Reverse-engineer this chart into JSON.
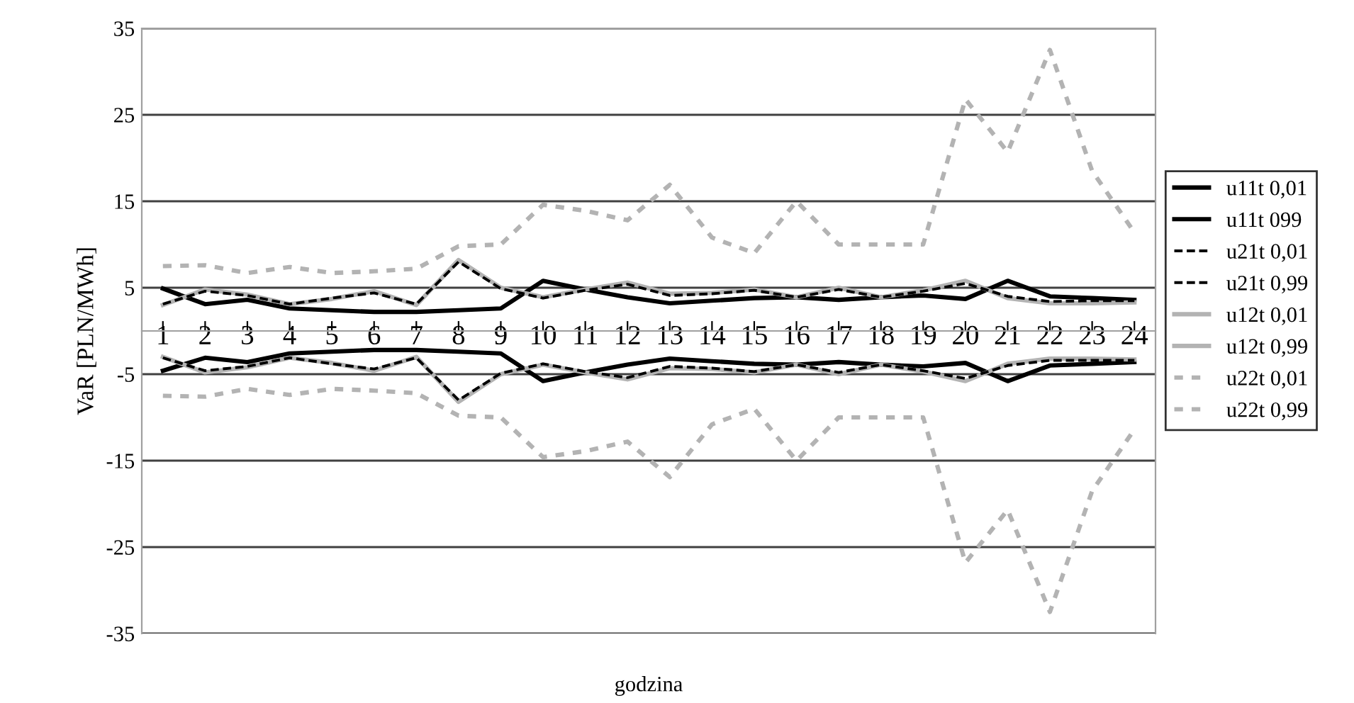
{
  "chart_data": {
    "type": "line",
    "xlabel": "godzina",
    "ylabel": "VaR [PLN/MWh]",
    "categories": [
      "1",
      "2",
      "3",
      "4",
      "5",
      "6",
      "7",
      "8",
      "9",
      "10",
      "11",
      "12",
      "13",
      "14",
      "15",
      "16",
      "17",
      "18",
      "19",
      "20",
      "21",
      "22",
      "23",
      "24"
    ],
    "ylim": [
      -35,
      35
    ],
    "yticks": [
      -35,
      -25,
      -15,
      -5,
      5,
      15,
      25,
      35
    ],
    "grid": "y",
    "legend": "right",
    "marker": "none",
    "series": [
      {
        "name": "u11t 0,01",
        "color": "#000000",
        "line_style": "solid",
        "values": [
          -4.6,
          -3.1,
          -3.6,
          -2.6,
          -2.4,
          -2.2,
          -2.2,
          -2.4,
          -2.6,
          -5.8,
          -4.8,
          -3.9,
          -3.2,
          -3.5,
          -3.8,
          -3.9,
          -3.6,
          -3.9,
          -4.1,
          -3.7,
          -5.8,
          -4.0,
          -3.8,
          -3.6
        ]
      },
      {
        "name": "u11t 099",
        "color": "#000000",
        "line_style": "solid",
        "values": [
          4.9,
          3.1,
          3.6,
          2.6,
          2.4,
          2.2,
          2.2,
          2.4,
          2.6,
          5.8,
          4.8,
          3.9,
          3.2,
          3.5,
          3.8,
          3.9,
          3.6,
          3.9,
          4.1,
          3.7,
          5.8,
          4.0,
          3.8,
          3.6
        ]
      },
      {
        "name": "u21t 0,01",
        "color": "#000000",
        "line_style": "dashed",
        "values": [
          -3.1,
          -4.6,
          -4.1,
          -3.1,
          -3.8,
          -4.4,
          -3.1,
          -8.0,
          -4.9,
          -3.8,
          -4.7,
          -5.4,
          -4.1,
          -4.3,
          -4.7,
          -3.9,
          -4.8,
          -3.9,
          -4.6,
          -5.5,
          -4.0,
          -3.4,
          -3.4,
          -3.4
        ]
      },
      {
        "name": "u21t 0,99",
        "color": "#000000",
        "line_style": "dashed",
        "values": [
          3.1,
          4.6,
          4.1,
          3.1,
          3.8,
          4.4,
          3.1,
          8.0,
          4.9,
          3.8,
          4.7,
          5.4,
          4.1,
          4.3,
          4.7,
          3.9,
          4.8,
          3.9,
          4.6,
          5.5,
          4.0,
          3.4,
          3.5,
          3.5
        ]
      },
      {
        "name": "u12t 0,01",
        "color": "#b3b3b3",
        "line_style": "solid",
        "values": [
          -3.0,
          -4.8,
          -4.2,
          -3.1,
          -3.7,
          -4.6,
          -3.0,
          -8.2,
          -5.0,
          -3.9,
          -4.8,
          -5.6,
          -4.3,
          -4.4,
          -4.8,
          -3.9,
          -5.0,
          -3.9,
          -4.7,
          -5.8,
          -3.8,
          -3.2,
          -3.2,
          -3.3
        ]
      },
      {
        "name": "u12t 0,99",
        "color": "#b3b3b3",
        "line_style": "solid",
        "values": [
          3.0,
          4.8,
          4.2,
          3.1,
          3.7,
          4.6,
          3.0,
          8.2,
          5.0,
          3.9,
          4.8,
          5.6,
          4.3,
          4.4,
          4.8,
          3.9,
          5.0,
          3.9,
          4.7,
          5.8,
          3.8,
          3.2,
          3.2,
          3.3
        ]
      },
      {
        "name": "u22t 0,01",
        "color": "#b3b3b3",
        "line_style": "dotted",
        "values": [
          -7.5,
          -7.6,
          -6.7,
          -7.4,
          -6.7,
          -6.9,
          -7.2,
          -9.8,
          -10.0,
          -14.6,
          -13.9,
          -12.8,
          -16.9,
          -10.8,
          -9.0,
          -15.0,
          -10.0,
          -10.0,
          -10.0,
          -26.8,
          -20.7,
          -32.5,
          -18.5,
          -11.4
        ]
      },
      {
        "name": "u22t 0,99",
        "color": "#b3b3b3",
        "line_style": "dotted",
        "values": [
          7.5,
          7.6,
          6.7,
          7.4,
          6.7,
          6.9,
          7.2,
          9.8,
          10.0,
          14.6,
          13.9,
          12.8,
          16.9,
          10.8,
          9.0,
          15.0,
          10.0,
          10.0,
          10.0,
          26.8,
          20.7,
          32.5,
          18.5,
          11.4
        ]
      }
    ]
  }
}
